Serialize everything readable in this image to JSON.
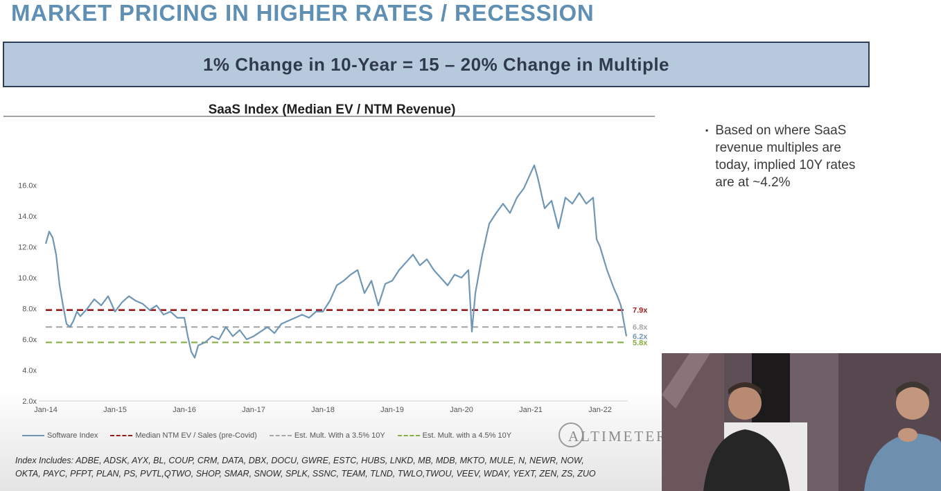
{
  "title": "MARKET PRICING IN HIGHER RATES / RECESSION",
  "banner": "1% Change in 10-Year = 15 – 20% Change in Multiple",
  "bullet": "Based on where SaaS revenue multiples are today, implied 10Y rates are at ~4.2%",
  "colors": {
    "title": "#5f8fb3",
    "banner_bg": "#b7c9dc",
    "series": "#6f97b5",
    "red": "#9b1b1b",
    "gray": "#a7a7a7",
    "green": "#86ad3f"
  },
  "chart_data": {
    "type": "line",
    "title": "SaaS Index (Median EV / NTM Revenue)",
    "ylim": [
      2.0,
      18.0
    ],
    "y_ticks": [
      2,
      4,
      6,
      8,
      10,
      12,
      14,
      16
    ],
    "y_tick_labels": [
      "2.0x",
      "4.0x",
      "6.0x",
      "8.0x",
      "10.0x",
      "12.0x",
      "14.0x",
      "16.0x"
    ],
    "x_ticks": [
      2014,
      2015,
      2016,
      2017,
      2018,
      2019,
      2020,
      2021,
      2022
    ],
    "x_tick_labels": [
      "Jan-14",
      "Jan-15",
      "Jan-16",
      "Jan-17",
      "Jan-18",
      "Jan-19",
      "Jan-20",
      "Jan-21",
      "Jan-22"
    ],
    "xlim": [
      2014.0,
      2022.4
    ],
    "series": [
      {
        "name": "Software Index",
        "x": [
          2014.0,
          2014.05,
          2014.1,
          2014.15,
          2014.2,
          2014.25,
          2014.3,
          2014.35,
          2014.4,
          2014.45,
          2014.5,
          2014.6,
          2014.7,
          2014.8,
          2014.9,
          2015.0,
          2015.1,
          2015.2,
          2015.3,
          2015.4,
          2015.5,
          2015.6,
          2015.7,
          2015.8,
          2015.9,
          2016.0,
          2016.05,
          2016.1,
          2016.15,
          2016.2,
          2016.3,
          2016.4,
          2016.5,
          2016.6,
          2016.7,
          2016.8,
          2016.9,
          2017.0,
          2017.1,
          2017.2,
          2017.3,
          2017.4,
          2017.5,
          2017.6,
          2017.7,
          2017.8,
          2017.9,
          2018.0,
          2018.1,
          2018.2,
          2018.3,
          2018.4,
          2018.5,
          2018.6,
          2018.7,
          2018.8,
          2018.9,
          2019.0,
          2019.1,
          2019.2,
          2019.3,
          2019.4,
          2019.5,
          2019.6,
          2019.7,
          2019.8,
          2019.9,
          2020.0,
          2020.1,
          2020.15,
          2020.2,
          2020.3,
          2020.4,
          2020.5,
          2020.6,
          2020.7,
          2020.8,
          2020.9,
          2020.95,
          2021.0,
          2021.05,
          2021.1,
          2021.2,
          2021.3,
          2021.4,
          2021.5,
          2021.6,
          2021.7,
          2021.8,
          2021.9,
          2021.95,
          2022.0,
          2022.1,
          2022.2,
          2022.25,
          2022.3,
          2022.38
        ],
        "y": [
          12.2,
          13.0,
          12.6,
          11.5,
          9.5,
          8.2,
          7.0,
          6.8,
          7.2,
          7.8,
          7.5,
          8.0,
          8.6,
          8.2,
          8.8,
          7.8,
          8.4,
          8.8,
          8.5,
          8.3,
          7.9,
          8.2,
          7.6,
          7.8,
          7.4,
          7.4,
          6.2,
          5.2,
          4.8,
          5.6,
          5.8,
          6.2,
          6.0,
          6.8,
          6.2,
          6.6,
          6.0,
          6.2,
          6.5,
          6.8,
          6.4,
          7.0,
          7.2,
          7.4,
          7.6,
          7.4,
          7.8,
          7.8,
          8.5,
          9.5,
          9.8,
          10.2,
          10.5,
          9.0,
          9.8,
          8.2,
          9.6,
          9.8,
          10.5,
          11.0,
          11.5,
          10.8,
          11.2,
          10.5,
          10.0,
          9.5,
          10.2,
          10.0,
          10.5,
          6.5,
          9.0,
          11.5,
          13.5,
          14.2,
          14.8,
          14.2,
          15.2,
          15.8,
          16.3,
          16.8,
          17.3,
          16.5,
          14.5,
          15.0,
          13.2,
          15.2,
          14.8,
          15.5,
          14.8,
          15.2,
          12.5,
          12.0,
          10.5,
          9.3,
          8.8,
          8.2,
          6.2
        ]
      },
      {
        "name": "Median NTM EV / Sales (pre-Covid)",
        "value": 7.9,
        "label": "7.9x",
        "dash": "dashed"
      },
      {
        "name": "Est. Mult. With a 3.5% 10Y",
        "value": 6.8,
        "label": "6.8x",
        "dash": "dashed"
      },
      {
        "name": "Est. Mult. with a 4.5% 10Y",
        "value": 5.8,
        "label": "5.8x",
        "dash": "dashed"
      }
    ],
    "end_label": {
      "value": 6.2,
      "label": "6.2x"
    },
    "legend": [
      "Software Index",
      "Median NTM EV / Sales (pre-Covid)",
      "Est. Mult. With a 3.5% 10Y",
      "Est. Mult. with a 4.5% 10Y"
    ]
  },
  "logo_text": "ALTIMETER",
  "index_note": [
    "Index Includes: ADBE, ADSK, AYX, BL, COUP, CRM, DATA, DBX, DOCU, GWRE, ESTC, HUBS, LNKD, MB, MDB, MKTO, MULE, N, NEWR, NOW,",
    "OKTA, PAYC, PFPT, PLAN, PS, PVTL,QTWO, SHOP, SMAR, SNOW, SPLK, SSNC, TEAM, TLND, TWLO,TWOU, VEEV, WDAY, YEXT, ZEN, ZS, ZUO"
  ]
}
